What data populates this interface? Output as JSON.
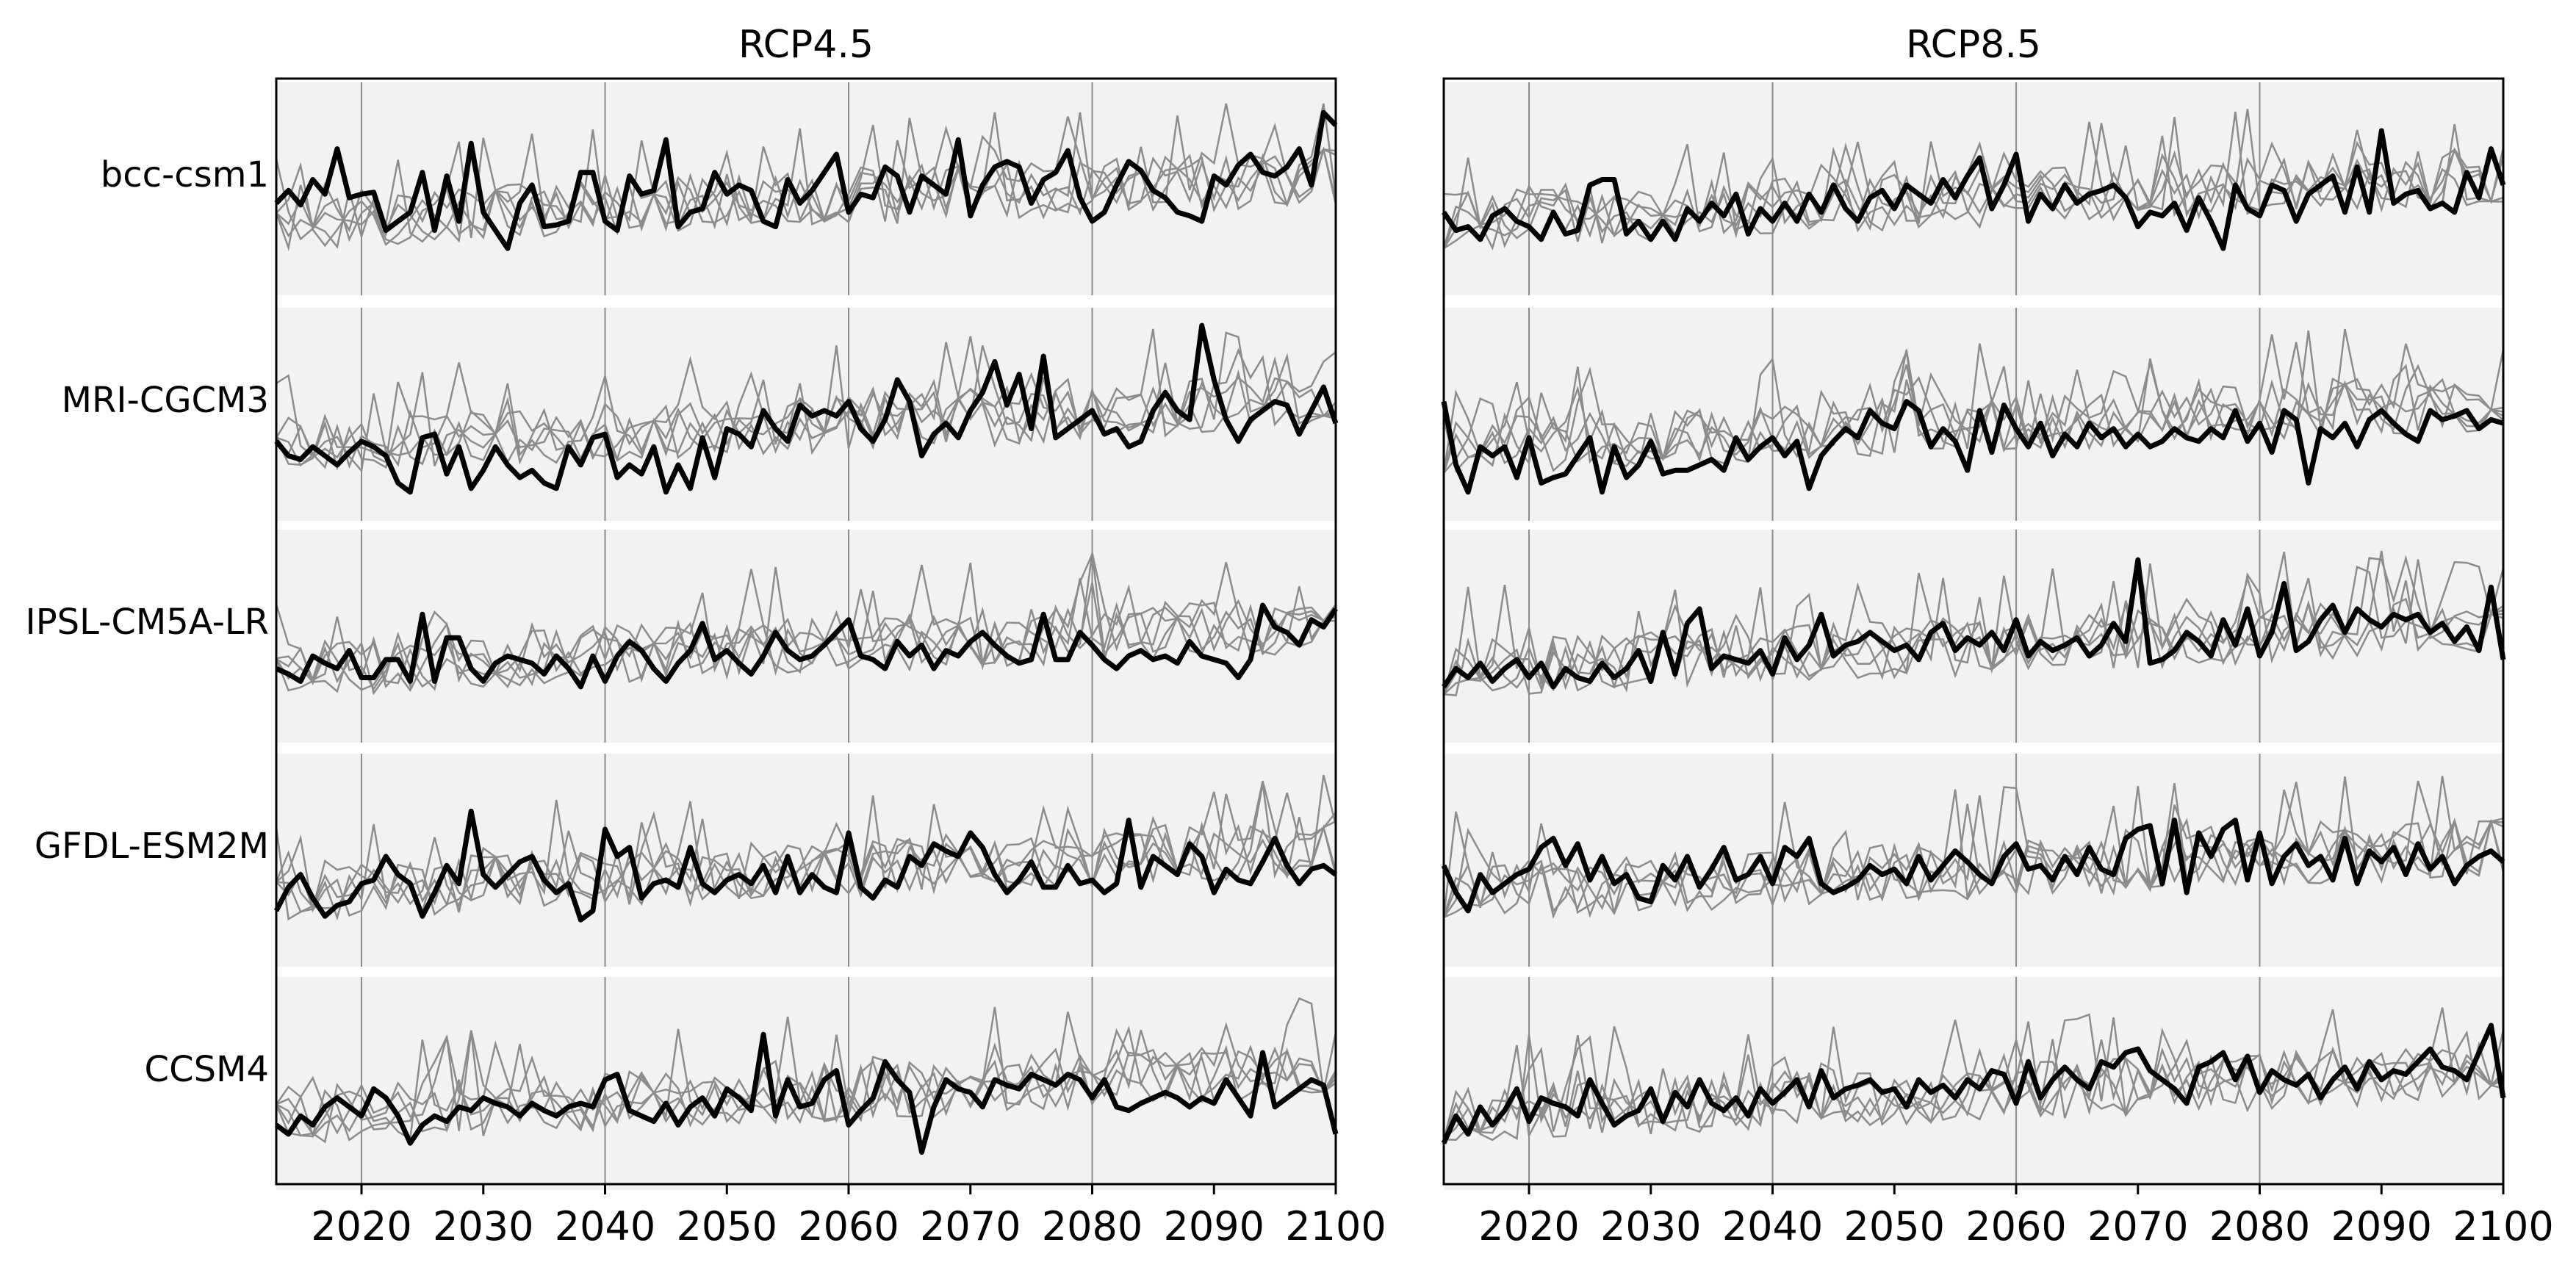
{
  "chart_data": {
    "type": "line",
    "x_axis": {
      "range": [
        2013,
        2100
      ],
      "ticks": [
        2020,
        2030,
        2040,
        2050,
        2060,
        2070,
        2080,
        2090,
        2100
      ],
      "gridlines": [
        2020,
        2040,
        2060,
        2080
      ]
    },
    "rows": [
      "bcc-csm1",
      "MRI-CGCM3",
      "IPSL-CM5A-LR",
      "GFDL-ESM2M",
      "CCSM4"
    ],
    "panels": [
      {
        "title": "RCP4.5",
        "rows": [
          {
            "label": "bcc-csm1",
            "highlight": [
              0.45,
              0.52,
              0.44,
              0.58,
              0.5,
              0.75,
              0.48,
              0.5,
              0.51,
              0.3,
              0.35,
              0.4,
              0.62,
              0.3,
              0.6,
              0.35,
              0.78,
              0.4,
              0.3,
              0.2,
              0.45,
              0.55,
              0.32,
              0.33,
              0.35,
              0.62,
              0.62,
              0.35,
              0.3,
              0.6,
              0.5,
              0.52,
              0.8,
              0.32,
              0.4,
              0.42,
              0.62,
              0.5,
              0.55,
              0.52,
              0.35,
              0.32,
              0.58,
              0.45,
              0.52,
              0.62,
              0.72,
              0.4,
              0.5,
              0.48,
              0.65,
              0.6,
              0.4,
              0.6,
              0.55,
              0.5,
              0.8,
              0.38,
              0.55,
              0.65,
              0.68,
              0.65,
              0.45,
              0.58,
              0.62,
              0.74,
              0.48,
              0.35,
              0.4,
              0.55,
              0.68,
              0.63,
              0.52,
              0.48,
              0.4,
              0.38,
              0.35,
              0.6,
              0.55,
              0.66,
              0.72,
              0.62,
              0.6,
              0.65,
              0.75,
              0.55,
              0.95,
              0.88
            ]
          },
          {
            "label": "MRI-CGCM3",
            "highlight": [
              0.38,
              0.3,
              0.28,
              0.35,
              0.3,
              0.25,
              0.32,
              0.38,
              0.35,
              0.3,
              0.15,
              0.1,
              0.4,
              0.42,
              0.2,
              0.35,
              0.12,
              0.22,
              0.35,
              0.25,
              0.18,
              0.22,
              0.15,
              0.12,
              0.35,
              0.25,
              0.4,
              0.42,
              0.18,
              0.25,
              0.2,
              0.35,
              0.1,
              0.25,
              0.12,
              0.4,
              0.18,
              0.45,
              0.42,
              0.35,
              0.55,
              0.45,
              0.38,
              0.58,
              0.52,
              0.55,
              0.52,
              0.6,
              0.45,
              0.38,
              0.5,
              0.72,
              0.6,
              0.3,
              0.42,
              0.48,
              0.4,
              0.55,
              0.65,
              0.82,
              0.58,
              0.75,
              0.45,
              0.85,
              0.4,
              0.45,
              0.5,
              0.55,
              0.42,
              0.45,
              0.35,
              0.38,
              0.55,
              0.65,
              0.55,
              0.5,
              1.02,
              0.72,
              0.5,
              0.38,
              0.5,
              0.55,
              0.6,
              0.58,
              0.42,
              0.55,
              0.68,
              0.48
            ]
          },
          {
            "label": "IPSL-CM5A-LR",
            "highlight": [
              0.35,
              0.32,
              0.28,
              0.42,
              0.38,
              0.35,
              0.45,
              0.3,
              0.3,
              0.4,
              0.4,
              0.28,
              0.65,
              0.28,
              0.52,
              0.52,
              0.35,
              0.28,
              0.38,
              0.42,
              0.4,
              0.38,
              0.32,
              0.42,
              0.35,
              0.25,
              0.42,
              0.28,
              0.42,
              0.5,
              0.45,
              0.35,
              0.28,
              0.38,
              0.45,
              0.6,
              0.4,
              0.45,
              0.38,
              0.32,
              0.42,
              0.55,
              0.45,
              0.4,
              0.42,
              0.48,
              0.55,
              0.62,
              0.42,
              0.4,
              0.35,
              0.5,
              0.42,
              0.48,
              0.35,
              0.45,
              0.42,
              0.5,
              0.55,
              0.48,
              0.42,
              0.38,
              0.4,
              0.65,
              0.4,
              0.4,
              0.55,
              0.48,
              0.4,
              0.35,
              0.42,
              0.45,
              0.4,
              0.42,
              0.38,
              0.5,
              0.42,
              0.4,
              0.38,
              0.3,
              0.4,
              0.7,
              0.58,
              0.55,
              0.48,
              0.62,
              0.58,
              0.68
            ]
          },
          {
            "label": "GFDL-ESM2M",
            "highlight": [
              0.25,
              0.38,
              0.45,
              0.32,
              0.22,
              0.28,
              0.3,
              0.4,
              0.42,
              0.55,
              0.45,
              0.4,
              0.22,
              0.35,
              0.5,
              0.4,
              0.8,
              0.45,
              0.38,
              0.45,
              0.52,
              0.55,
              0.42,
              0.35,
              0.4,
              0.2,
              0.25,
              0.7,
              0.55,
              0.6,
              0.32,
              0.4,
              0.42,
              0.38,
              0.6,
              0.4,
              0.35,
              0.42,
              0.45,
              0.4,
              0.5,
              0.35,
              0.55,
              0.35,
              0.45,
              0.38,
              0.35,
              0.68,
              0.38,
              0.32,
              0.42,
              0.38,
              0.55,
              0.5,
              0.62,
              0.58,
              0.55,
              0.68,
              0.6,
              0.45,
              0.35,
              0.42,
              0.52,
              0.38,
              0.38,
              0.5,
              0.4,
              0.42,
              0.35,
              0.4,
              0.75,
              0.38,
              0.55,
              0.5,
              0.45,
              0.62,
              0.55,
              0.35,
              0.48,
              0.42,
              0.4,
              0.52,
              0.65,
              0.5,
              0.4,
              0.48,
              0.5,
              0.45
            ]
          },
          {
            "label": "CCSM4",
            "highlight": [
              0.3,
              0.25,
              0.35,
              0.3,
              0.4,
              0.45,
              0.4,
              0.35,
              0.5,
              0.45,
              0.35,
              0.2,
              0.3,
              0.35,
              0.32,
              0.4,
              0.38,
              0.45,
              0.42,
              0.4,
              0.35,
              0.42,
              0.38,
              0.35,
              0.4,
              0.42,
              0.4,
              0.55,
              0.58,
              0.38,
              0.35,
              0.32,
              0.42,
              0.3,
              0.4,
              0.45,
              0.35,
              0.5,
              0.45,
              0.38,
              0.8,
              0.35,
              0.55,
              0.4,
              0.42,
              0.55,
              0.6,
              0.3,
              0.38,
              0.45,
              0.65,
              0.55,
              0.48,
              0.15,
              0.4,
              0.55,
              0.5,
              0.48,
              0.4,
              0.55,
              0.52,
              0.5,
              0.58,
              0.55,
              0.52,
              0.58,
              0.55,
              0.45,
              0.55,
              0.4,
              0.38,
              0.42,
              0.45,
              0.48,
              0.45,
              0.4,
              0.45,
              0.42,
              0.55,
              0.45,
              0.35,
              0.7,
              0.4,
              0.45,
              0.5,
              0.55,
              0.52,
              0.25
            ]
          }
        ]
      },
      {
        "title": "RCP8.5",
        "rows": [
          {
            "label": "bcc-csm1",
            "highlight": [
              0.4,
              0.3,
              0.32,
              0.25,
              0.38,
              0.42,
              0.35,
              0.32,
              0.25,
              0.4,
              0.28,
              0.3,
              0.55,
              0.58,
              0.58,
              0.28,
              0.35,
              0.25,
              0.35,
              0.25,
              0.42,
              0.35,
              0.45,
              0.38,
              0.5,
              0.28,
              0.42,
              0.35,
              0.45,
              0.35,
              0.5,
              0.4,
              0.55,
              0.42,
              0.35,
              0.48,
              0.52,
              0.42,
              0.55,
              0.5,
              0.45,
              0.58,
              0.48,
              0.6,
              0.7,
              0.42,
              0.55,
              0.72,
              0.35,
              0.5,
              0.42,
              0.55,
              0.45,
              0.5,
              0.52,
              0.55,
              0.48,
              0.32,
              0.4,
              0.38,
              0.45,
              0.3,
              0.48,
              0.35,
              0.2,
              0.55,
              0.42,
              0.38,
              0.55,
              0.52,
              0.35,
              0.5,
              0.55,
              0.6,
              0.4,
              0.65,
              0.4,
              0.85,
              0.45,
              0.5,
              0.52,
              0.42,
              0.45,
              0.4,
              0.62,
              0.48,
              0.75,
              0.55
            ]
          },
          {
            "label": "MRI-CGCM3",
            "highlight": [
              0.6,
              0.25,
              0.1,
              0.35,
              0.3,
              0.35,
              0.18,
              0.4,
              0.15,
              0.18,
              0.2,
              0.3,
              0.4,
              0.1,
              0.35,
              0.18,
              0.25,
              0.38,
              0.2,
              0.22,
              0.22,
              0.25,
              0.28,
              0.22,
              0.4,
              0.28,
              0.35,
              0.4,
              0.3,
              0.38,
              0.12,
              0.3,
              0.38,
              0.45,
              0.4,
              0.55,
              0.48,
              0.45,
              0.6,
              0.55,
              0.35,
              0.45,
              0.38,
              0.22,
              0.55,
              0.32,
              0.58,
              0.45,
              0.35,
              0.48,
              0.3,
              0.42,
              0.35,
              0.48,
              0.4,
              0.45,
              0.35,
              0.42,
              0.35,
              0.38,
              0.45,
              0.4,
              0.38,
              0.45,
              0.4,
              0.55,
              0.38,
              0.48,
              0.32,
              0.55,
              0.5,
              0.15,
              0.45,
              0.4,
              0.48,
              0.35,
              0.5,
              0.55,
              0.48,
              0.42,
              0.38,
              0.55,
              0.5,
              0.52,
              0.55,
              0.45,
              0.5,
              0.48
            ]
          },
          {
            "label": "IPSL-CM5A-LR",
            "highlight": [
              0.25,
              0.35,
              0.3,
              0.38,
              0.28,
              0.35,
              0.4,
              0.3,
              0.38,
              0.25,
              0.35,
              0.3,
              0.28,
              0.38,
              0.3,
              0.35,
              0.45,
              0.28,
              0.55,
              0.32,
              0.6,
              0.68,
              0.35,
              0.42,
              0.4,
              0.38,
              0.45,
              0.32,
              0.52,
              0.4,
              0.48,
              0.65,
              0.42,
              0.48,
              0.5,
              0.55,
              0.5,
              0.45,
              0.48,
              0.4,
              0.55,
              0.6,
              0.45,
              0.52,
              0.48,
              0.55,
              0.45,
              0.62,
              0.42,
              0.5,
              0.45,
              0.48,
              0.52,
              0.42,
              0.48,
              0.6,
              0.5,
              0.95,
              0.38,
              0.4,
              0.45,
              0.55,
              0.5,
              0.42,
              0.62,
              0.48,
              0.68,
              0.42,
              0.55,
              0.82,
              0.45,
              0.5,
              0.62,
              0.7,
              0.55,
              0.68,
              0.62,
              0.58,
              0.65,
              0.62,
              0.65,
              0.55,
              0.6,
              0.5,
              0.58,
              0.45,
              0.8,
              0.4
            ]
          },
          {
            "label": "GFDL-ESM2M",
            "highlight": [
              0.5,
              0.35,
              0.25,
              0.45,
              0.35,
              0.4,
              0.45,
              0.48,
              0.6,
              0.65,
              0.5,
              0.62,
              0.42,
              0.55,
              0.4,
              0.45,
              0.32,
              0.3,
              0.5,
              0.42,
              0.55,
              0.38,
              0.48,
              0.6,
              0.42,
              0.45,
              0.55,
              0.4,
              0.6,
              0.55,
              0.65,
              0.4,
              0.35,
              0.38,
              0.42,
              0.5,
              0.45,
              0.48,
              0.4,
              0.55,
              0.42,
              0.5,
              0.58,
              0.52,
              0.45,
              0.4,
              0.55,
              0.62,
              0.48,
              0.5,
              0.42,
              0.55,
              0.45,
              0.6,
              0.48,
              0.45,
              0.65,
              0.7,
              0.72,
              0.4,
              0.75,
              0.35,
              0.68,
              0.55,
              0.7,
              0.75,
              0.42,
              0.68,
              0.4,
              0.55,
              0.62,
              0.5,
              0.55,
              0.42,
              0.65,
              0.4,
              0.58,
              0.52,
              0.6,
              0.45,
              0.62,
              0.48,
              0.55,
              0.4,
              0.5,
              0.55,
              0.58,
              0.52
            ]
          },
          {
            "label": "CCSM4",
            "highlight": [
              0.2,
              0.35,
              0.25,
              0.4,
              0.3,
              0.38,
              0.5,
              0.32,
              0.45,
              0.42,
              0.4,
              0.35,
              0.55,
              0.42,
              0.3,
              0.35,
              0.38,
              0.5,
              0.32,
              0.48,
              0.4,
              0.55,
              0.42,
              0.38,
              0.45,
              0.35,
              0.5,
              0.42,
              0.48,
              0.55,
              0.4,
              0.6,
              0.45,
              0.5,
              0.52,
              0.55,
              0.48,
              0.5,
              0.4,
              0.55,
              0.48,
              0.52,
              0.45,
              0.55,
              0.5,
              0.6,
              0.58,
              0.42,
              0.65,
              0.45,
              0.55,
              0.62,
              0.55,
              0.5,
              0.65,
              0.62,
              0.7,
              0.72,
              0.6,
              0.55,
              0.5,
              0.42,
              0.62,
              0.65,
              0.7,
              0.55,
              0.68,
              0.48,
              0.6,
              0.55,
              0.52,
              0.58,
              0.45,
              0.55,
              0.62,
              0.5,
              0.65,
              0.55,
              0.6,
              0.58,
              0.65,
              0.72,
              0.62,
              0.6,
              0.55,
              0.7,
              0.85,
              0.45
            ]
          }
        ]
      }
    ],
    "colors": {
      "highlight": "#000000",
      "ensemble": "#8c8c8c",
      "row_background": "#f2f2f2",
      "gridline": "#8c8c8c",
      "frame": "#000000"
    },
    "grid": true,
    "legend": "none"
  }
}
